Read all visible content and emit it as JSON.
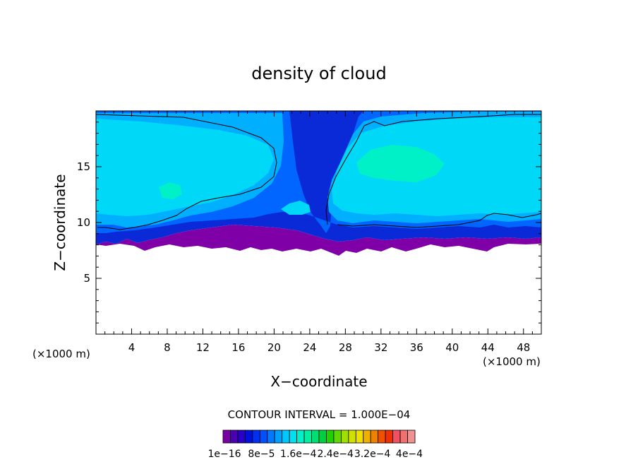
{
  "chart_data": {
    "type": "heatmap",
    "title": "density of cloud",
    "xlabel": "X−coordinate",
    "ylabel": "Z−coordinate",
    "x_unit_left": "(×1000 m)",
    "x_unit_right": "(×1000 m)",
    "xlim": [
      0,
      50
    ],
    "ylim": [
      0,
      20
    ],
    "x_ticks": [
      "4",
      "8",
      "12",
      "16",
      "20",
      "24",
      "28",
      "32",
      "36",
      "40",
      "44",
      "48"
    ],
    "x_tick_values": [
      4,
      8,
      12,
      16,
      20,
      24,
      28,
      32,
      36,
      40,
      44,
      48
    ],
    "y_ticks": [
      "5",
      "10",
      "15"
    ],
    "y_tick_values": [
      5,
      10,
      15
    ],
    "contour_interval_text": "CONTOUR INTERVAL = 1.000E−04",
    "colorbar": {
      "labels": [
        "1e−16",
        "8e−5",
        "1.6e−4",
        "2.4e−4",
        "3.2e−4",
        "4e−4"
      ],
      "label_values": [
        1e-16,
        8e-05,
        0.00016,
        0.00024,
        0.00032,
        0.0004
      ],
      "colors": [
        "#7b00a3",
        "#4800b0",
        "#2a00c8",
        "#0010dc",
        "#0030f0",
        "#0050ff",
        "#0078ff",
        "#00a0ff",
        "#00c8ff",
        "#00e0f0",
        "#00f0c8",
        "#00f0a0",
        "#00e070",
        "#00d040",
        "#20d000",
        "#60d800",
        "#a0e000",
        "#d0e000",
        "#f0e000",
        "#f0b000",
        "#f08000",
        "#f05000",
        "#f03000",
        "#f05060",
        "#f07070",
        "#f09090"
      ]
    },
    "description_bands": [
      {
        "level": 1e-16,
        "color": "#8000a8"
      },
      {
        "level": 3e-05,
        "color": "#0a2ad8"
      },
      {
        "level": 7e-05,
        "color": "#0066ff"
      },
      {
        "level": 0.00011,
        "color": "#00b0ff"
      },
      {
        "level": 0.00015,
        "color": "#00d8f8"
      },
      {
        "level": 0.00019,
        "color": "#00f0c8"
      }
    ]
  }
}
